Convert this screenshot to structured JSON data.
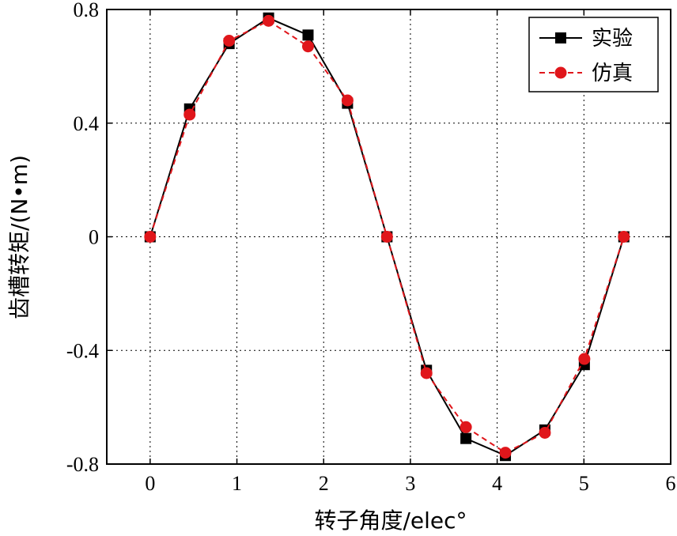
{
  "chart_data": {
    "type": "line",
    "xlabel": "转子角度/elec°",
    "ylabel": "齿槽转矩/(N•m)",
    "xlim": [
      -0.5,
      6
    ],
    "ylim": [
      -0.8,
      0.8
    ],
    "xticks": [
      "0",
      "1",
      "2",
      "3",
      "4",
      "5",
      "6"
    ],
    "yticks": [
      "0.8",
      "0.4",
      "0",
      "-0.4",
      "-0.8"
    ],
    "grid": true,
    "legend_position": "top-right",
    "series": [
      {
        "name": "实验",
        "color": "#000000",
        "marker": "square",
        "line_style": "solid",
        "x": [
          0,
          0.455,
          0.91,
          1.365,
          1.82,
          2.275,
          2.73,
          3.185,
          3.64,
          4.095,
          4.55,
          5.005,
          5.46
        ],
        "y": [
          0,
          0.45,
          0.68,
          0.77,
          0.71,
          0.47,
          0,
          -0.47,
          -0.71,
          -0.77,
          -0.68,
          -0.45,
          0
        ]
      },
      {
        "name": "仿真",
        "color": "#e0161b",
        "marker": "circle",
        "line_style": "dashed",
        "x": [
          0,
          0.455,
          0.91,
          1.365,
          1.82,
          2.275,
          2.73,
          3.185,
          3.64,
          4.095,
          4.55,
          5.005,
          5.46
        ],
        "y": [
          0,
          0.43,
          0.69,
          0.76,
          0.67,
          0.48,
          0,
          -0.48,
          -0.67,
          -0.76,
          -0.69,
          -0.43,
          0
        ]
      }
    ]
  }
}
